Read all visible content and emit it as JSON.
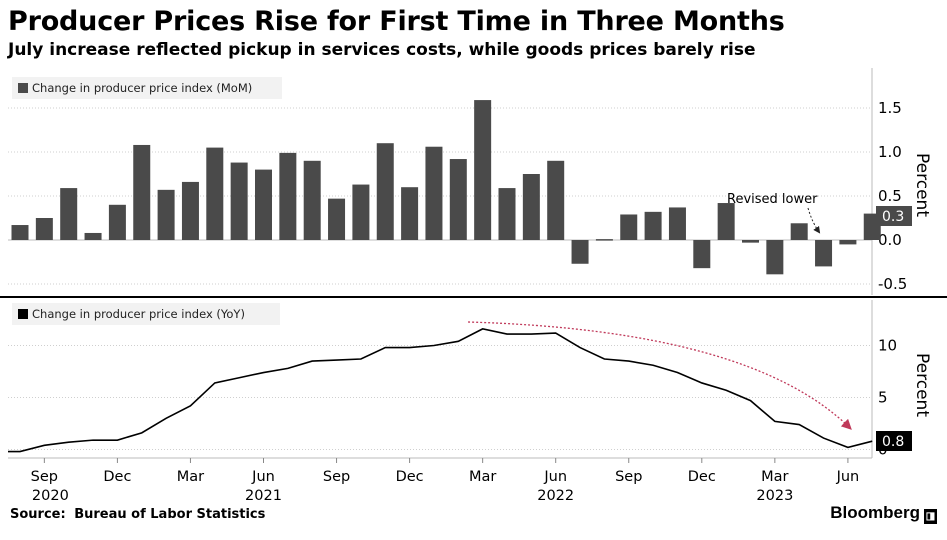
{
  "title": "Producer Prices Rise for First Time in Three Months",
  "subtitle": "July increase reflected pickup in services costs, while goods prices barely rise",
  "source_label": "Source:",
  "source": "Bureau of Labor Statistics",
  "brand": "Bloomberg",
  "brand_icon": "bloomberg-terminal-icon",
  "colors": {
    "bars": "#4a4a4a",
    "line": "#000000",
    "arrow": "#c0395a",
    "highlight": "#000000"
  },
  "chart_data": [
    {
      "type": "bar",
      "legend": "Change in producer price index (MoM)",
      "ylabel": "Percent",
      "yticks": [
        1.5,
        1.0,
        0.5,
        0.0,
        -0.5
      ],
      "ytick_labels": [
        "1.5",
        "1.0",
        "0.5",
        "0.0",
        "-0.5"
      ],
      "ylim": [
        -0.6,
        1.9
      ],
      "categories": [
        "2020-08",
        "2020-09",
        "2020-10",
        "2020-11",
        "2020-12",
        "2021-01",
        "2021-02",
        "2021-03",
        "2021-04",
        "2021-05",
        "2021-06",
        "2021-07",
        "2021-08",
        "2021-09",
        "2021-10",
        "2021-11",
        "2021-12",
        "2022-01",
        "2022-02",
        "2022-03",
        "2022-04",
        "2022-05",
        "2022-06",
        "2022-07",
        "2022-08",
        "2022-09",
        "2022-10",
        "2022-11",
        "2022-12",
        "2023-01",
        "2023-02",
        "2023-03",
        "2023-04",
        "2023-05",
        "2023-06",
        "2023-07"
      ],
      "values": [
        0.17,
        0.25,
        0.59,
        0.08,
        0.4,
        1.08,
        0.57,
        0.66,
        1.05,
        0.88,
        0.8,
        0.99,
        0.9,
        0.47,
        0.63,
        1.1,
        0.6,
        1.06,
        0.92,
        1.59,
        0.59,
        0.75,
        0.9,
        -0.27,
        0.01,
        0.29,
        0.32,
        0.37,
        -0.32,
        0.42,
        -0.03,
        -0.39,
        0.19,
        -0.3,
        -0.05,
        0.3
      ],
      "last_value_label": "0.3",
      "annotation": "Revised lower"
    },
    {
      "type": "line",
      "legend": "Change in producer price index (YoY)",
      "ylabel": "Percent",
      "yticks": [
        10,
        5,
        0
      ],
      "ytick_labels": [
        "10",
        "5",
        "0"
      ],
      "ylim": [
        -0.5,
        13.5
      ],
      "x": [
        "2020-08",
        "2020-09",
        "2020-10",
        "2020-11",
        "2020-12",
        "2021-01",
        "2021-02",
        "2021-03",
        "2021-04",
        "2021-05",
        "2021-06",
        "2021-07",
        "2021-08",
        "2021-09",
        "2021-10",
        "2021-11",
        "2021-12",
        "2022-01",
        "2022-02",
        "2022-03",
        "2022-04",
        "2022-05",
        "2022-06",
        "2022-07",
        "2022-08",
        "2022-09",
        "2022-10",
        "2022-11",
        "2022-12",
        "2023-01",
        "2023-02",
        "2023-03",
        "2023-04",
        "2023-05",
        "2023-06",
        "2023-07"
      ],
      "values": [
        -0.2,
        0.4,
        0.7,
        0.9,
        0.9,
        1.6,
        3.0,
        4.2,
        6.4,
        6.9,
        7.4,
        7.8,
        8.5,
        8.6,
        8.7,
        9.8,
        9.8,
        10.0,
        10.4,
        11.6,
        11.1,
        11.1,
        11.2,
        9.8,
        8.7,
        8.5,
        8.1,
        7.4,
        6.4,
        5.7,
        4.7,
        2.7,
        2.4,
        1.1,
        0.2,
        0.8
      ],
      "last_value_label": "0.8"
    }
  ],
  "x_axis": {
    "tick_labels": [
      {
        "month": "2020-09",
        "label": "Sep",
        "year": "2020"
      },
      {
        "month": "2020-12",
        "label": "Dec",
        "year": ""
      },
      {
        "month": "2021-03",
        "label": "Mar",
        "year": ""
      },
      {
        "month": "2021-06",
        "label": "Jun",
        "year": "2021"
      },
      {
        "month": "2021-09",
        "label": "Sep",
        "year": ""
      },
      {
        "month": "2021-12",
        "label": "Dec",
        "year": ""
      },
      {
        "month": "2022-03",
        "label": "Mar",
        "year": ""
      },
      {
        "month": "2022-06",
        "label": "Jun",
        "year": "2022"
      },
      {
        "month": "2022-09",
        "label": "Sep",
        "year": ""
      },
      {
        "month": "2022-12",
        "label": "Dec",
        "year": ""
      },
      {
        "month": "2023-03",
        "label": "Mar",
        "year": "2023"
      },
      {
        "month": "2023-06",
        "label": "Jun",
        "year": ""
      }
    ]
  }
}
